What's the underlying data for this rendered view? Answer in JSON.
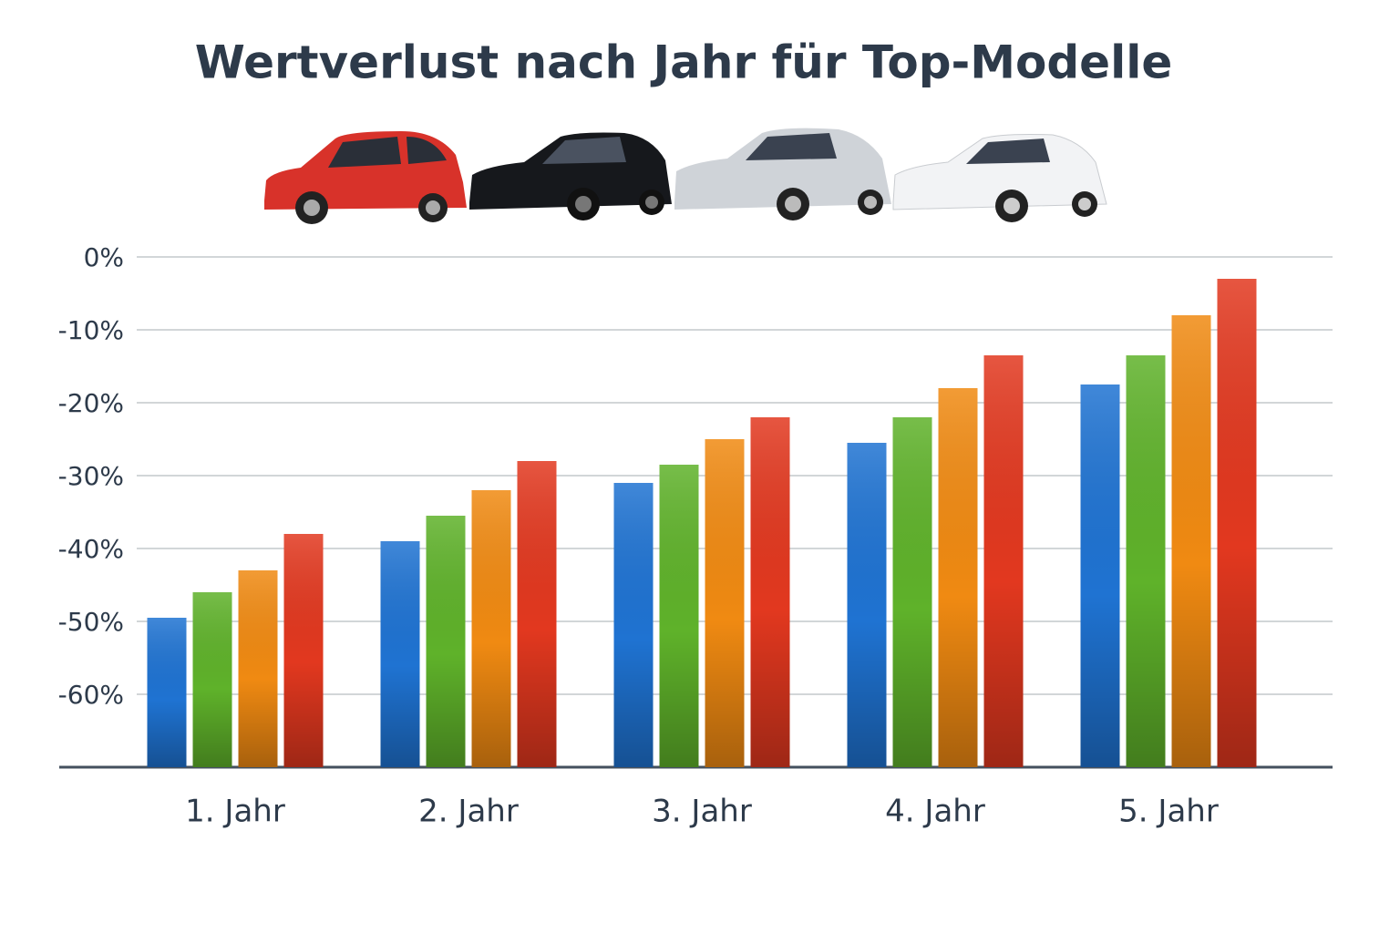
{
  "chart_data": {
    "type": "bar",
    "title": "Wertverlust nach Jahr für Top-Modelle",
    "categories": [
      "1. Jahr",
      "2. Jahr",
      "3. Jahr",
      "4. Jahr",
      "5. Jahr"
    ],
    "series": [
      {
        "color": "#1f73d2",
        "values": [
          -49.5,
          -39,
          -31,
          -25.5,
          -17.5
        ]
      },
      {
        "color": "#5fb22a",
        "values": [
          -46,
          -35.5,
          -28.5,
          -22,
          -13.5
        ]
      },
      {
        "color": "#f08a12",
        "values": [
          -43,
          -32,
          -25,
          -18,
          -8
        ]
      },
      {
        "color": "#e2381f",
        "values": [
          -38,
          -28,
          -22,
          -13.5,
          -3
        ]
      }
    ],
    "ylim": [
      -70,
      0
    ],
    "yticks": [
      {
        "value": 0,
        "label": "0%"
      },
      {
        "value": -10,
        "label": "-10%"
      },
      {
        "value": -20,
        "label": "-20%"
      },
      {
        "value": -30,
        "label": "-30%"
      },
      {
        "value": -40,
        "label": "-40%"
      },
      {
        "value": -50,
        "label": "-50%"
      },
      {
        "value": -60,
        "label": "-60%"
      }
    ],
    "grid": true
  }
}
